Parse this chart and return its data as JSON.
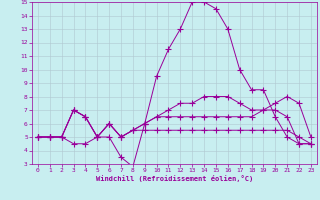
{
  "xlabel": "Windchill (Refroidissement éolien,°C)",
  "xlim": [
    -0.5,
    23.5
  ],
  "ylim": [
    3,
    15
  ],
  "xticks": [
    0,
    1,
    2,
    3,
    4,
    5,
    6,
    7,
    8,
    9,
    10,
    11,
    12,
    13,
    14,
    15,
    16,
    17,
    18,
    19,
    20,
    21,
    22,
    23
  ],
  "yticks": [
    3,
    4,
    5,
    6,
    7,
    8,
    9,
    10,
    11,
    12,
    13,
    14,
    15
  ],
  "bg_color": "#c8eef0",
  "line_color": "#990099",
  "grid_color": "#b0c8d0",
  "line1_x": [
    0,
    1,
    2,
    3,
    4,
    5,
    6,
    7,
    8,
    9,
    10,
    11,
    12,
    13,
    14,
    15,
    16,
    17,
    18,
    19,
    20,
    21,
    22,
    23
  ],
  "line1_y": [
    5.0,
    5.0,
    5.0,
    4.5,
    4.5,
    5.0,
    5.0,
    3.5,
    2.8,
    6.0,
    9.5,
    11.5,
    13.0,
    15.0,
    15.0,
    14.5,
    13.0,
    10.0,
    8.5,
    8.5,
    6.5,
    5.0,
    4.5,
    4.5
  ],
  "line2_x": [
    0,
    1,
    2,
    3,
    4,
    5,
    6,
    7,
    8,
    9,
    10,
    11,
    12,
    13,
    14,
    15,
    16,
    17,
    18,
    19,
    20,
    21,
    22,
    23
  ],
  "line2_y": [
    5.0,
    5.0,
    5.0,
    7.0,
    6.5,
    5.0,
    6.0,
    5.0,
    5.5,
    6.0,
    6.5,
    6.5,
    6.5,
    6.5,
    6.5,
    6.5,
    6.5,
    6.5,
    6.5,
    7.0,
    7.5,
    8.0,
    7.5,
    5.0
  ],
  "line3_x": [
    0,
    1,
    2,
    3,
    4,
    5,
    6,
    7,
    8,
    9,
    10,
    11,
    12,
    13,
    14,
    15,
    16,
    17,
    18,
    19,
    20,
    21,
    22,
    23
  ],
  "line3_y": [
    5.0,
    5.0,
    5.0,
    7.0,
    6.5,
    5.0,
    6.0,
    5.0,
    5.5,
    5.5,
    5.5,
    5.5,
    5.5,
    5.5,
    5.5,
    5.5,
    5.5,
    5.5,
    5.5,
    5.5,
    5.5,
    5.5,
    5.0,
    4.5
  ],
  "line4_x": [
    0,
    1,
    2,
    3,
    4,
    5,
    6,
    7,
    8,
    9,
    10,
    11,
    12,
    13,
    14,
    15,
    16,
    17,
    18,
    19,
    20,
    21,
    22,
    23
  ],
  "line4_y": [
    5.0,
    5.0,
    5.0,
    7.0,
    6.5,
    5.0,
    6.0,
    5.0,
    5.5,
    6.0,
    6.5,
    7.0,
    7.5,
    7.5,
    8.0,
    8.0,
    8.0,
    7.5,
    7.0,
    7.0,
    7.0,
    6.5,
    4.5,
    4.5
  ]
}
